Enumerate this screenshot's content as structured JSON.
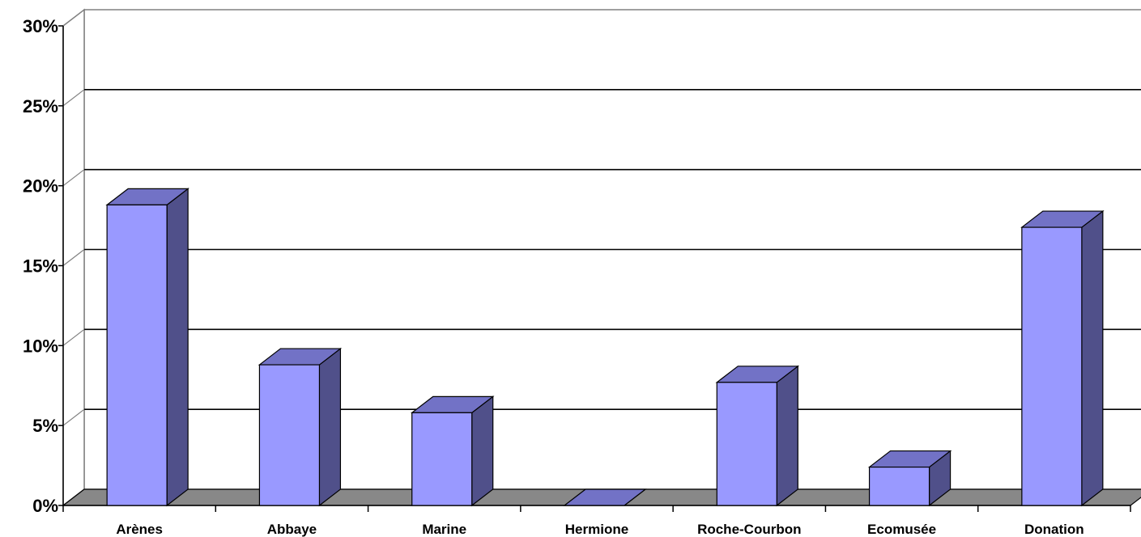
{
  "chart_data": {
    "type": "bar",
    "style": "3d-column",
    "categories": [
      "Arènes",
      "Abbaye",
      "Marine",
      "Hermione",
      "Roche-Courbon",
      "Ecomusée",
      "Donation"
    ],
    "values": [
      18.8,
      8.8,
      5.8,
      0,
      7.7,
      2.4,
      17.4
    ],
    "unit": "%",
    "y_ticks": [
      "0%",
      "5%",
      "10%",
      "15%",
      "20%",
      "25%",
      "30%"
    ],
    "ylim": [
      0,
      30
    ],
    "grid": "horizontal",
    "legend": "none",
    "title": "",
    "xlabel": "",
    "ylabel": "",
    "colors": {
      "bar_front": "#9999ff",
      "bar_side": "#50508a",
      "bar_top": "#7272c6",
      "floor": "#888888",
      "gridline": "#000000",
      "wall": "#ffffff"
    }
  }
}
